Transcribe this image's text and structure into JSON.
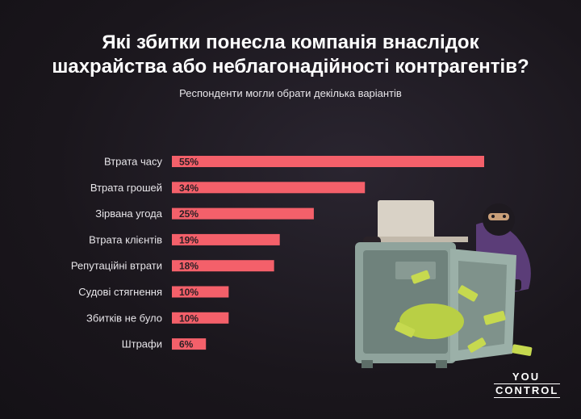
{
  "header": {
    "title_line1": "Які збитки понесла компанія внаслідок",
    "title_line2": "шахрайства або неблагонадійності контрагентів?",
    "subtitle": "Респонденти могли обрати декілька варіантів"
  },
  "logo": {
    "line1": "YOU",
    "line2": "CONTROL"
  },
  "colors": {
    "bar": "#f4606a",
    "background": "#1c181e",
    "label_on_bar": "#2a1f24"
  },
  "chart_data": {
    "type": "bar",
    "orientation": "horizontal",
    "categories": [
      "Втрата часу",
      "Втрата грошей",
      "Зірвана угода",
      "Втрата клієнтів",
      "Репутаційні втрати",
      "Судові стягнення",
      "Збитків не було",
      "Штрафи"
    ],
    "values": [
      55,
      34,
      25,
      19,
      18,
      10,
      10,
      6
    ],
    "value_labels": [
      "55%",
      "34%",
      "25%",
      "19%",
      "18%",
      "10%",
      "10%",
      "6%"
    ],
    "unit": "%",
    "xlim": [
      0,
      55
    ],
    "grid": false,
    "legend": "none"
  }
}
